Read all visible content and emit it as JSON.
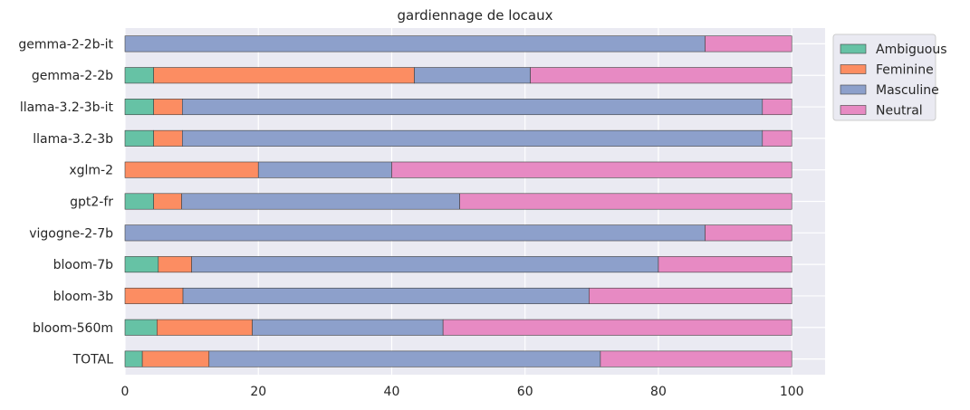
{
  "chart_data": {
    "type": "bar",
    "orientation": "horizontal",
    "stacked": true,
    "title": "gardiennage de locaux",
    "xlabel": "",
    "ylabel": "",
    "xlim": [
      0,
      105
    ],
    "xticks": [
      "0",
      "20",
      "40",
      "60",
      "80",
      "100"
    ],
    "grid": true,
    "legend_position": "top-right outside",
    "categories": [
      "gemma-2-2b-it",
      "gemma-2-2b",
      "llama-3.2-3b-it",
      "llama-3.2-3b",
      "xglm-2",
      "gpt2-fr",
      "vigogne-2-7b",
      "bloom-7b",
      "bloom-3b",
      "bloom-560m",
      "TOTAL"
    ],
    "series": [
      {
        "name": "Ambiguous",
        "color": "#66c2a5",
        "values": [
          0,
          4.3,
          4.3,
          4.3,
          0,
          4.3,
          0,
          5.0,
          0,
          4.8,
          2.6
        ]
      },
      {
        "name": "Feminine",
        "color": "#fc8d62",
        "values": [
          0,
          39.1,
          4.3,
          4.3,
          20.0,
          4.2,
          0,
          5.0,
          8.7,
          14.3,
          10.0
        ]
      },
      {
        "name": "Masculine",
        "color": "#8da0cb",
        "values": [
          87.0,
          17.4,
          87.0,
          87.0,
          20.0,
          41.7,
          87.0,
          70.0,
          60.9,
          28.6,
          58.7
        ]
      },
      {
        "name": "Neutral",
        "color": "#e78ac3",
        "values": [
          13.0,
          39.2,
          4.4,
          4.4,
          60.0,
          49.8,
          13.0,
          20.0,
          30.4,
          52.3,
          28.7
        ]
      }
    ]
  },
  "colors": {
    "plot_background": "#eaeaf2",
    "grid": "#ffffff",
    "text": "#262626"
  }
}
